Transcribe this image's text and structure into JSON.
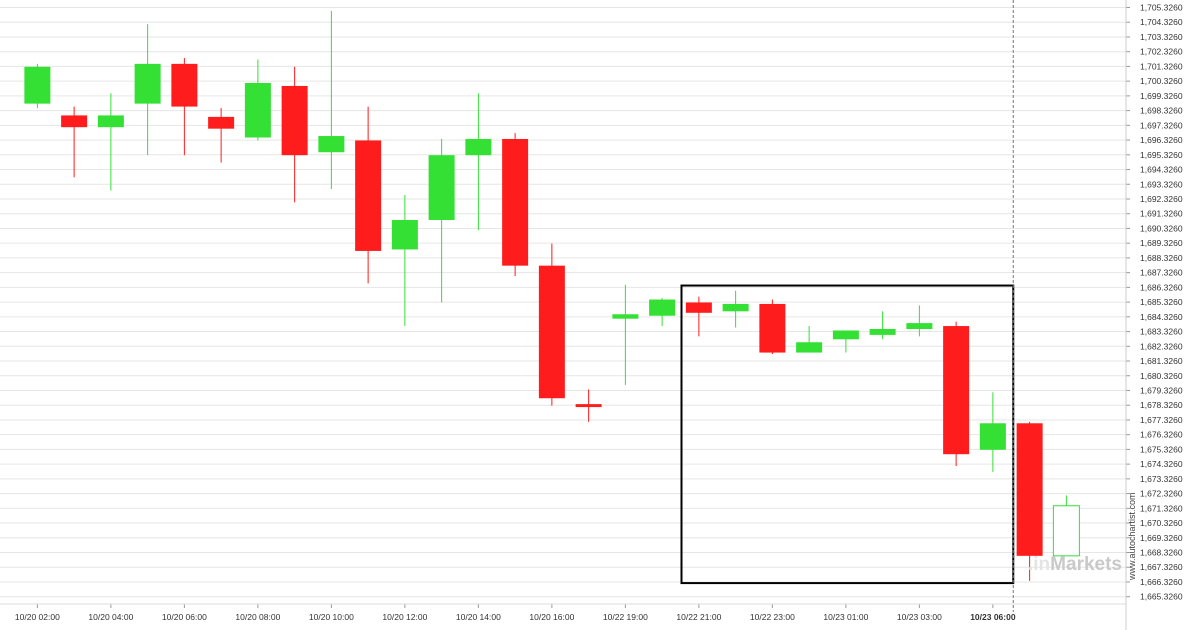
{
  "chart_data": {
    "type": "candlestick",
    "ylim": [
      1664.326,
      1705.826
    ],
    "y_ticks": [
      "1,705.3260",
      "1,704.3260",
      "1,703.3260",
      "1,702.3260",
      "1,701.3260",
      "1,700.3260",
      "1,699.3260",
      "1,698.3260",
      "1,697.3260",
      "1,696.3260",
      "1,695.3260",
      "1,694.3260",
      "1,693.3260",
      "1,692.3260",
      "1,691.3260",
      "1,690.3260",
      "1,689.3260",
      "1,688.3260",
      "1,687.3260",
      "1,686.3260",
      "1,685.3260",
      "1,684.3260",
      "1,683.3260",
      "1,682.3260",
      "1,681.3260",
      "1,680.3260",
      "1,679.3260",
      "1,678.3260",
      "1,677.3260",
      "1,676.3260",
      "1,675.3260",
      "1,674.3260",
      "1,673.3260",
      "1,672.3260",
      "1,671.3260",
      "1,670.3260",
      "1,669.3260",
      "1,668.3260",
      "1,667.3260",
      "1,666.3260",
      "1,665.3260"
    ],
    "x_ticks": [
      {
        "label": "10/20 02:00",
        "bar": 0.5
      },
      {
        "label": "10/20 04:00",
        "bar": 2.5
      },
      {
        "label": "10/20 06:00",
        "bar": 4.5
      },
      {
        "label": "10/20 08:00",
        "bar": 6.5
      },
      {
        "label": "10/20 10:00",
        "bar": 8.5
      },
      {
        "label": "10/20 12:00",
        "bar": 10.5
      },
      {
        "label": "10/20 14:00",
        "bar": 12.5
      },
      {
        "label": "10/20 16:00",
        "bar": 14.5
      },
      {
        "label": "10/22 19:00",
        "bar": 16.5
      },
      {
        "label": "10/22 21:00",
        "bar": 18.5
      },
      {
        "label": "10/22 23:00",
        "bar": 20.5
      },
      {
        "label": "10/23 01:00",
        "bar": 22.5
      },
      {
        "label": "10/23 03:00",
        "bar": 24.5
      },
      {
        "label": "10/23 06:00",
        "bar": 26.5,
        "bold": true
      }
    ],
    "candles": [
      {
        "o": 1698.8,
        "h": 1701.5,
        "l": 1698.5,
        "c": 1701.3
      },
      {
        "o": 1698.0,
        "h": 1698.6,
        "l": 1693.8,
        "c": 1697.2
      },
      {
        "o": 1697.2,
        "h": 1699.5,
        "l": 1692.9,
        "c": 1698.0
      },
      {
        "o": 1698.8,
        "h": 1704.2,
        "l": 1695.3,
        "c": 1701.5
      },
      {
        "o": 1701.5,
        "h": 1701.9,
        "l": 1695.3,
        "c": 1698.6
      },
      {
        "o": 1697.9,
        "h": 1698.5,
        "l": 1694.8,
        "c": 1697.1
      },
      {
        "o": 1696.5,
        "h": 1701.8,
        "l": 1696.3,
        "c": 1700.2
      },
      {
        "o": 1700.0,
        "h": 1701.3,
        "l": 1692.1,
        "c": 1695.3
      },
      {
        "o": 1695.5,
        "h": 1705.1,
        "l": 1693.0,
        "c": 1696.6
      },
      {
        "o": 1696.3,
        "h": 1698.6,
        "l": 1686.6,
        "c": 1688.8
      },
      {
        "o": 1688.9,
        "h": 1692.6,
        "l": 1683.7,
        "c": 1690.9
      },
      {
        "o": 1690.9,
        "h": 1696.4,
        "l": 1685.3,
        "c": 1695.3
      },
      {
        "o": 1695.3,
        "h": 1699.5,
        "l": 1690.2,
        "c": 1696.4
      },
      {
        "o": 1696.4,
        "h": 1696.8,
        "l": 1687.1,
        "c": 1687.8
      },
      {
        "o": 1687.8,
        "h": 1689.3,
        "l": 1678.3,
        "c": 1678.8
      },
      {
        "o": 1678.4,
        "h": 1679.4,
        "l": 1677.2,
        "c": 1678.2
      },
      {
        "o": 1684.2,
        "h": 1686.5,
        "l": 1679.7,
        "c": 1684.5
      },
      {
        "o": 1684.4,
        "h": 1685.6,
        "l": 1683.7,
        "c": 1685.5
      },
      {
        "o": 1685.3,
        "h": 1685.7,
        "l": 1683.0,
        "c": 1684.6
      },
      {
        "o": 1684.7,
        "h": 1686.1,
        "l": 1683.6,
        "c": 1685.2
      },
      {
        "o": 1685.2,
        "h": 1685.5,
        "l": 1681.8,
        "c": 1681.9
      },
      {
        "o": 1681.9,
        "h": 1683.7,
        "l": 1681.9,
        "c": 1682.6
      },
      {
        "o": 1682.8,
        "h": 1683.4,
        "l": 1681.9,
        "c": 1683.4
      },
      {
        "o": 1683.1,
        "h": 1684.7,
        "l": 1682.8,
        "c": 1683.5
      },
      {
        "o": 1683.5,
        "h": 1685.1,
        "l": 1683.0,
        "c": 1683.9
      },
      {
        "o": 1683.7,
        "h": 1684.0,
        "l": 1674.2,
        "c": 1675.0
      },
      {
        "o": 1675.3,
        "h": 1679.2,
        "l": 1673.8,
        "c": 1677.1
      },
      {
        "o": 1677.1,
        "h": 1677.2,
        "l": 1666.4,
        "c": 1668.1
      },
      {
        "o": 1668.1,
        "h": 1672.2,
        "l": 1668.1,
        "c": 1671.5
      }
    ],
    "last_candle_hollow": true,
    "pattern_box": {
      "from_bar": 18.0,
      "to_bar": 27.0,
      "top": 1686.45,
      "bottom": 1666.25
    },
    "cursor_bar": 27.0,
    "colors": {
      "up": "#33e033",
      "down": "#ff1c1c",
      "grid": "#e6e6e6",
      "box": "#000000",
      "cursor": "#777777"
    }
  },
  "watermark": {
    "side_text": "www.autochartist.com",
    "logo_prefix": ".in",
    "logo_text": "Markets"
  }
}
